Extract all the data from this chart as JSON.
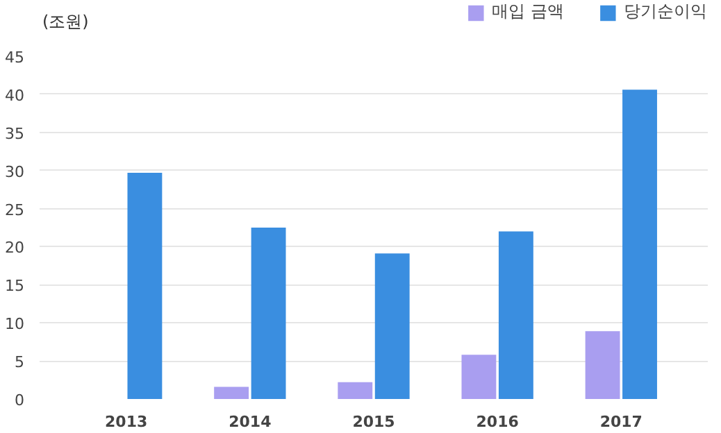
{
  "chart_data": {
    "type": "bar",
    "ylabel": "(조원)",
    "categories": [
      "2013",
      "2014",
      "2015",
      "2016",
      "2017"
    ],
    "series": [
      {
        "name": "매입 금액",
        "color": "#a99ef0",
        "values": [
          null,
          1.6,
          2.2,
          5.8,
          8.9
        ]
      },
      {
        "name": "당기순이익",
        "color": "#3a8ee0",
        "values": [
          29.7,
          22.5,
          19.1,
          22.0,
          40.6
        ]
      }
    ],
    "ylim": [
      0,
      45
    ],
    "yticks": [
      0,
      5,
      10,
      15,
      20,
      25,
      30,
      35,
      40,
      45
    ],
    "grid": "y",
    "legend": "top right"
  }
}
